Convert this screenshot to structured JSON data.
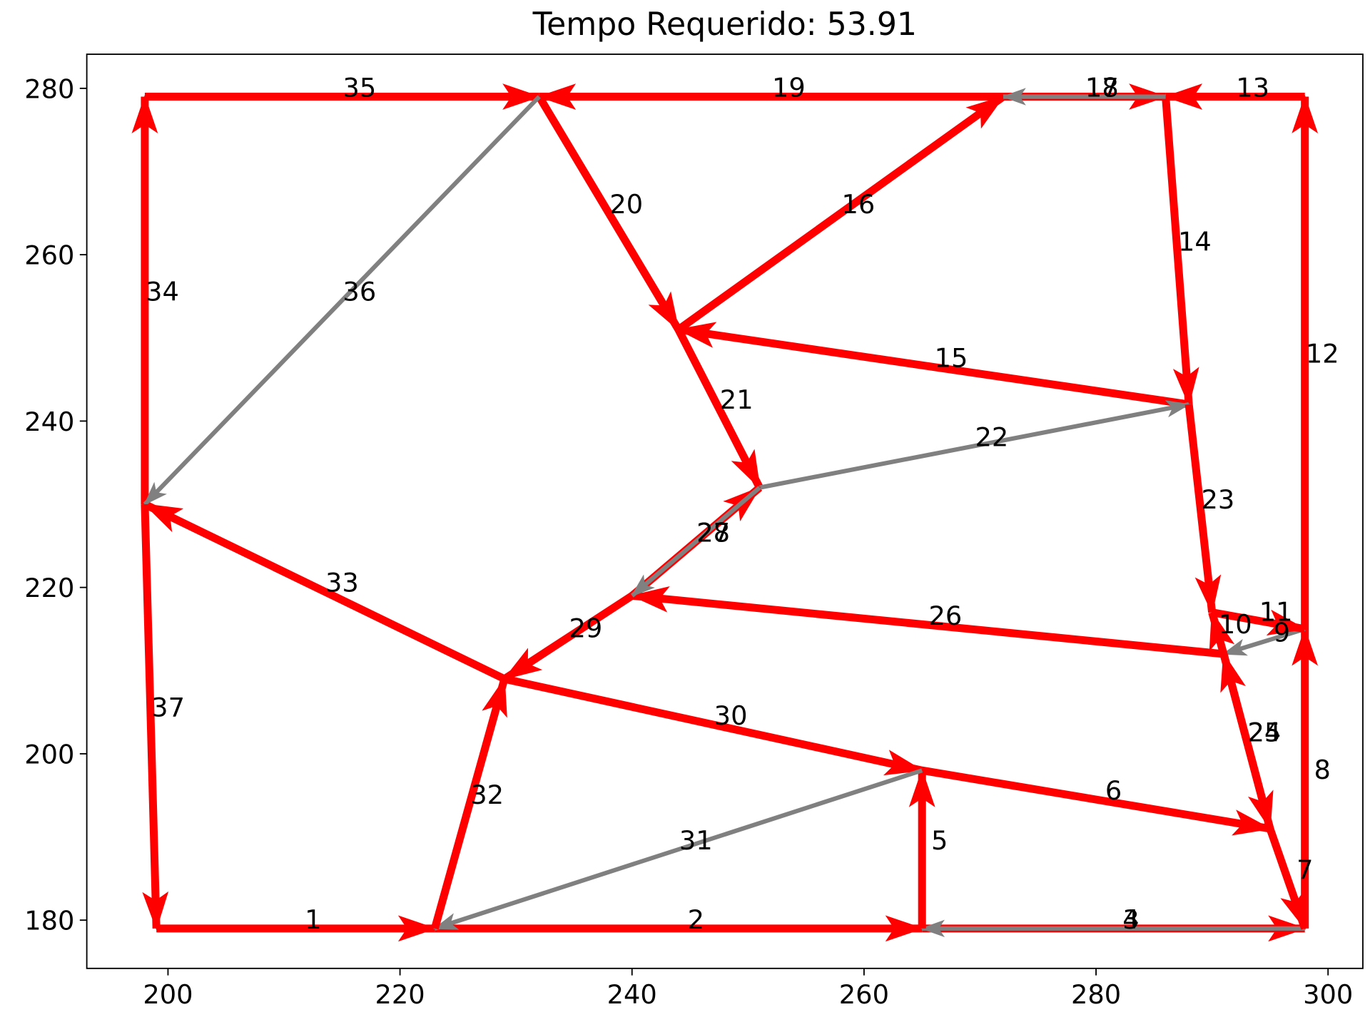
{
  "chart_data": {
    "type": "directed-graph",
    "title": "Tempo Requerido: 53.91",
    "xlim": [
      193,
      303
    ],
    "ylim": [
      174.2,
      284.1
    ],
    "xticks": [
      200,
      220,
      240,
      260,
      280,
      300
    ],
    "yticks": [
      180,
      200,
      220,
      240,
      260,
      280
    ],
    "edges": [
      {
        "label": "1",
        "x": [
          199,
          223
        ],
        "y": [
          179,
          179
        ],
        "color": "red"
      },
      {
        "label": "2",
        "x": [
          223,
          265
        ],
        "y": [
          179,
          179
        ],
        "color": "red"
      },
      {
        "label": "3",
        "x": [
          265,
          298
        ],
        "y": [
          179,
          179
        ],
        "color": "red"
      },
      {
        "label": "4",
        "x": [
          298,
          265
        ],
        "y": [
          179,
          179
        ],
        "color": "gray"
      },
      {
        "label": "5",
        "x": [
          265,
          265
        ],
        "y": [
          179,
          198
        ],
        "color": "red"
      },
      {
        "label": "6",
        "x": [
          265,
          295
        ],
        "y": [
          198,
          191
        ],
        "color": "red"
      },
      {
        "label": "7",
        "x": [
          295,
          298
        ],
        "y": [
          191,
          179
        ],
        "color": "red"
      },
      {
        "label": "8",
        "x": [
          298,
          298
        ],
        "y": [
          179,
          215
        ],
        "color": "red"
      },
      {
        "label": "9",
        "x": [
          298,
          291
        ],
        "y": [
          215,
          212
        ],
        "color": "gray"
      },
      {
        "label": "10",
        "x": [
          291,
          290
        ],
        "y": [
          212,
          217
        ],
        "color": "red"
      },
      {
        "label": "11",
        "x": [
          290,
          298
        ],
        "y": [
          217,
          215
        ],
        "color": "red"
      },
      {
        "label": "12",
        "x": [
          298,
          298
        ],
        "y": [
          215,
          279
        ],
        "color": "red"
      },
      {
        "label": "13",
        "x": [
          298,
          286
        ],
        "y": [
          279,
          279
        ],
        "color": "red"
      },
      {
        "label": "14",
        "x": [
          286,
          288
        ],
        "y": [
          279,
          242
        ],
        "color": "red"
      },
      {
        "label": "15",
        "x": [
          288,
          244
        ],
        "y": [
          242,
          251
        ],
        "color": "red"
      },
      {
        "label": "16",
        "x": [
          244,
          272
        ],
        "y": [
          251,
          279
        ],
        "color": "red"
      },
      {
        "label": "17",
        "x": [
          272,
          286
        ],
        "y": [
          279,
          279
        ],
        "color": "red"
      },
      {
        "label": "18",
        "x": [
          286,
          272
        ],
        "y": [
          279,
          279
        ],
        "color": "gray"
      },
      {
        "label": "19",
        "x": [
          272,
          232
        ],
        "y": [
          279,
          279
        ],
        "color": "red"
      },
      {
        "label": "20",
        "x": [
          232,
          244
        ],
        "y": [
          279,
          251
        ],
        "color": "red"
      },
      {
        "label": "21",
        "x": [
          244,
          251
        ],
        "y": [
          251,
          232
        ],
        "color": "red"
      },
      {
        "label": "22",
        "x": [
          251,
          288
        ],
        "y": [
          232,
          242
        ],
        "color": "gray"
      },
      {
        "label": "23",
        "x": [
          288,
          290
        ],
        "y": [
          242,
          217
        ],
        "color": "red"
      },
      {
        "label": "24",
        "x": [
          295,
          291
        ],
        "y": [
          191,
          212
        ],
        "color": "red"
      },
      {
        "label": "25",
        "x": [
          291,
          295
        ],
        "y": [
          212,
          191
        ],
        "color": "red"
      },
      {
        "label": "26",
        "x": [
          291,
          240
        ],
        "y": [
          212,
          219
        ],
        "color": "red"
      },
      {
        "label": "27",
        "x": [
          240,
          251
        ],
        "y": [
          219,
          232
        ],
        "color": "red"
      },
      {
        "label": "28",
        "x": [
          251,
          240
        ],
        "y": [
          232,
          219
        ],
        "color": "gray"
      },
      {
        "label": "29",
        "x": [
          240,
          229
        ],
        "y": [
          219,
          209
        ],
        "color": "red"
      },
      {
        "label": "30",
        "x": [
          229,
          265
        ],
        "y": [
          209,
          198
        ],
        "color": "red"
      },
      {
        "label": "31",
        "x": [
          265,
          223
        ],
        "y": [
          198,
          179
        ],
        "color": "gray"
      },
      {
        "label": "32",
        "x": [
          223,
          229
        ],
        "y": [
          179,
          209
        ],
        "color": "red"
      },
      {
        "label": "33",
        "x": [
          229,
          198
        ],
        "y": [
          209,
          230
        ],
        "color": "red"
      },
      {
        "label": "34",
        "x": [
          198,
          198
        ],
        "y": [
          230,
          279
        ],
        "color": "red"
      },
      {
        "label": "35",
        "x": [
          198,
          232
        ],
        "y": [
          279,
          279
        ],
        "color": "red"
      },
      {
        "label": "36",
        "x": [
          232,
          198
        ],
        "y": [
          279,
          230
        ],
        "color": "gray"
      },
      {
        "label": "37",
        "x": [
          198,
          199
        ],
        "y": [
          230,
          179
        ],
        "color": "red"
      }
    ]
  }
}
